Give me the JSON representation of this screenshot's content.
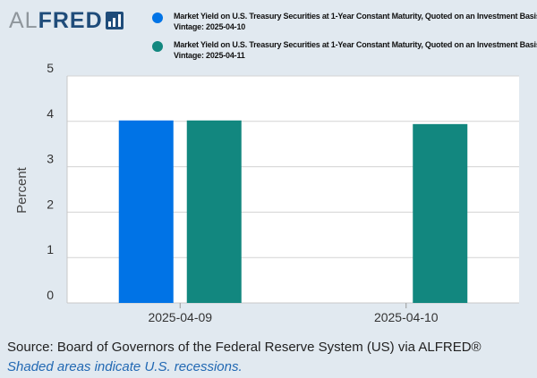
{
  "logo": {
    "part1": "AL",
    "part2": "FRED"
  },
  "legend": [
    {
      "line1": "Market Yield on U.S. Treasury Securities at 1-Year Constant Maturity, Quoted on an Investment Basis",
      "line2": "Vintage: 2025-04-10",
      "color": "#0073e6"
    },
    {
      "line1": "Market Yield on U.S. Treasury Securities at 1-Year Constant Maturity, Quoted on an Investment Basis",
      "line2": "Vintage: 2025-04-11",
      "color": "#12877f"
    }
  ],
  "footer": {
    "source": "Source: Board of Governors of the Federal Reserve System (US) via ALFRED®",
    "note": "Shaded areas indicate U.S. recessions."
  },
  "chart_data": {
    "type": "bar",
    "categories": [
      "2025-04-09",
      "2025-04-10"
    ],
    "series": [
      {
        "name": "Vintage: 2025-04-10",
        "color": "#0073e6",
        "values": [
          4.02,
          null
        ]
      },
      {
        "name": "Vintage: 2025-04-11",
        "color": "#12877f",
        "values": [
          4.02,
          3.94
        ]
      }
    ],
    "ylabel": "Percent",
    "ylim": [
      0,
      5
    ],
    "yticks": [
      0,
      1,
      2,
      3,
      4,
      5
    ],
    "grid": true,
    "legend_position": "top"
  }
}
